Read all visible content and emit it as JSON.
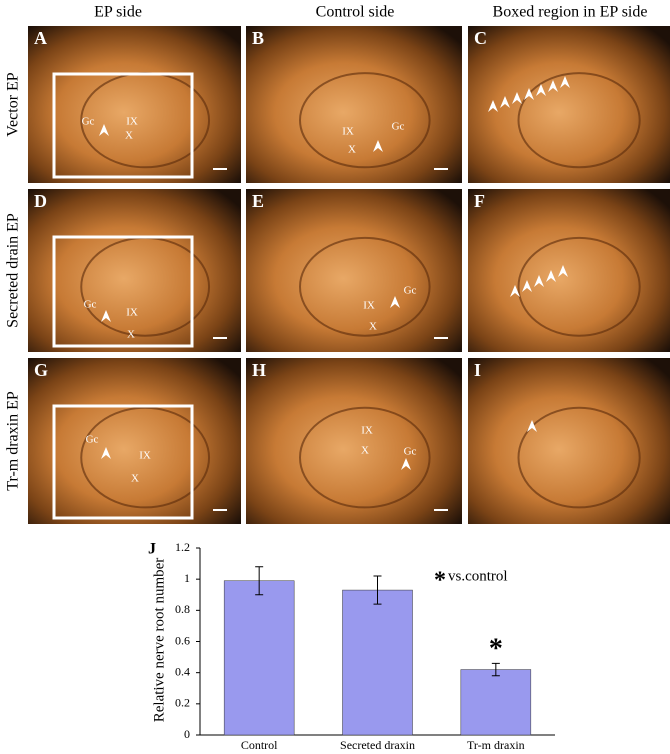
{
  "columns": [
    "EP side",
    "Control side",
    "Boxed region in EP side"
  ],
  "rows": [
    "Vector EP",
    "Secreted drain EP",
    "Tr-m draxin EP"
  ],
  "panels": [
    {
      "letter": "A",
      "labels": [
        "Gc",
        "IX",
        "X"
      ]
    },
    {
      "letter": "B",
      "labels": [
        "IX",
        "X",
        "Gc"
      ]
    },
    {
      "letter": "C",
      "labels": []
    },
    {
      "letter": "D",
      "labels": [
        "Gc",
        "IX",
        "X"
      ]
    },
    {
      "letter": "E",
      "labels": [
        "IX",
        "X",
        "Gc"
      ]
    },
    {
      "letter": "F",
      "labels": []
    },
    {
      "letter": "G",
      "labels": [
        "Gc",
        "IX",
        "X"
      ]
    },
    {
      "letter": "H",
      "labels": [
        "IX",
        "X",
        "Gc"
      ]
    },
    {
      "letter": "I",
      "labels": []
    }
  ],
  "chart_data": {
    "type": "bar",
    "panel": "J",
    "ylabel": "Relative nerve root number",
    "categories": [
      "Control",
      "Secreted draxin",
      "Tr-m draxin"
    ],
    "values": [
      0.99,
      0.93,
      0.42
    ],
    "errors": [
      0.09,
      0.09,
      0.04
    ],
    "color": "#9999ee",
    "ylim": [
      0,
      1.2
    ],
    "yticks": [
      0,
      0.2,
      0.4,
      0.6,
      0.8,
      1,
      1.2
    ],
    "significance": "*",
    "note_symbol": "*",
    "note": "vs.control"
  }
}
